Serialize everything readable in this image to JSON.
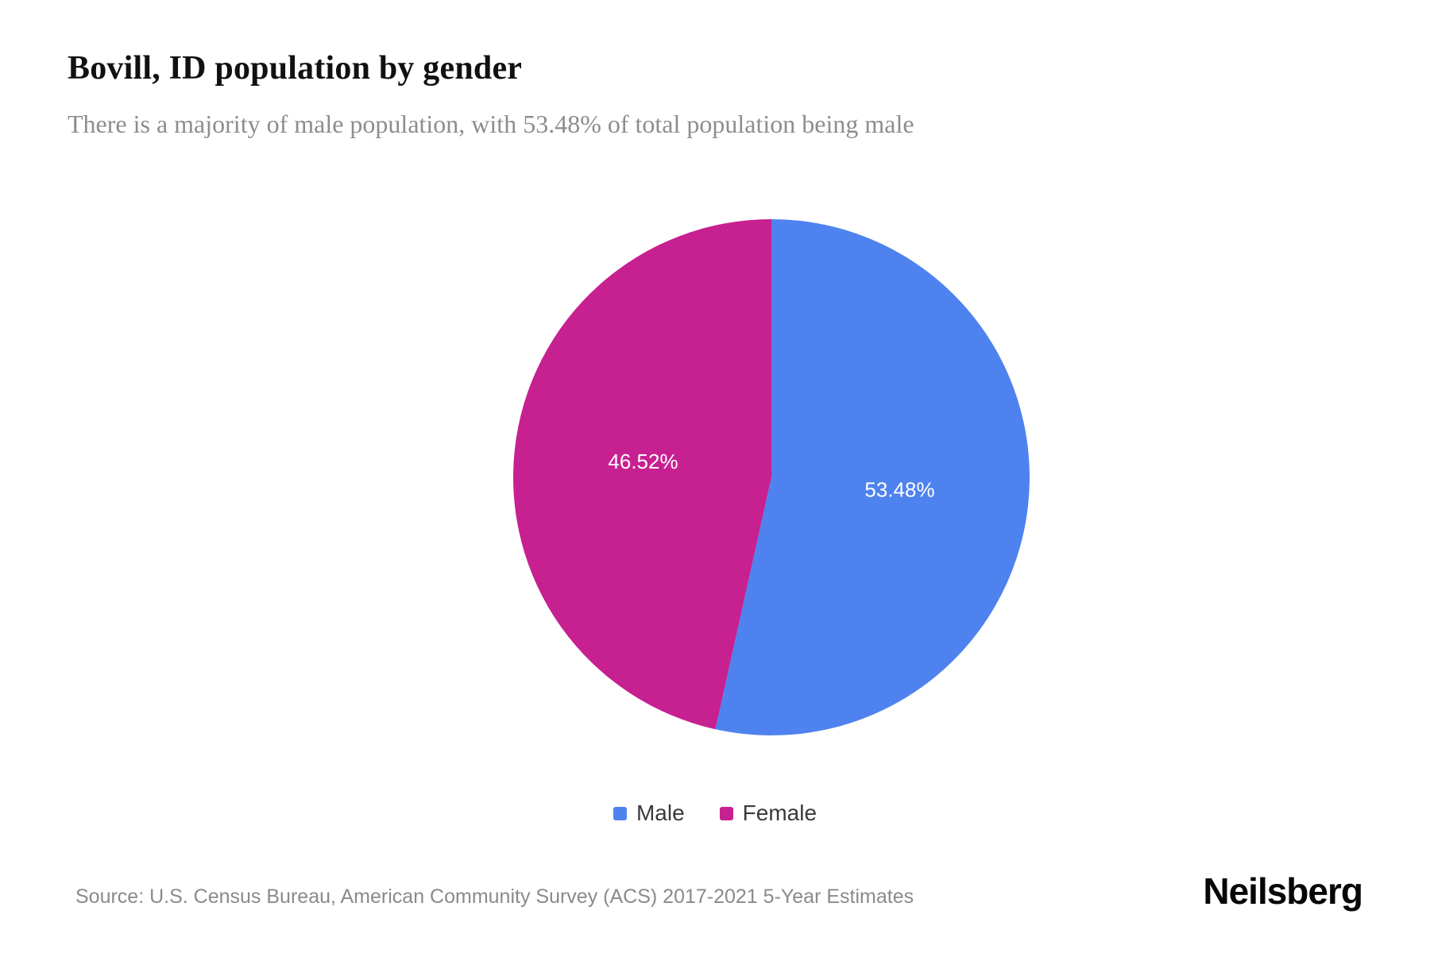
{
  "header": {
    "title": "Bovill, ID population by gender",
    "subtitle": "There is a majority of male population, with 53.48% of total population being male"
  },
  "chart_data": {
    "type": "pie",
    "title": "Bovill, ID population by gender",
    "start_angle_deg": 0,
    "direction": "clockwise",
    "legend_position": "bottom",
    "series": [
      {
        "name": "Male",
        "value": 53.48,
        "label": "53.48%",
        "color": "#4e82ee"
      },
      {
        "name": "Female",
        "value": 46.52,
        "label": "46.52%",
        "color": "#c72091"
      }
    ]
  },
  "footer": {
    "source": "Source: U.S. Census Bureau, American Community Survey (ACS) 2017-2021 5-Year Estimates",
    "brand": "Neilsberg"
  }
}
